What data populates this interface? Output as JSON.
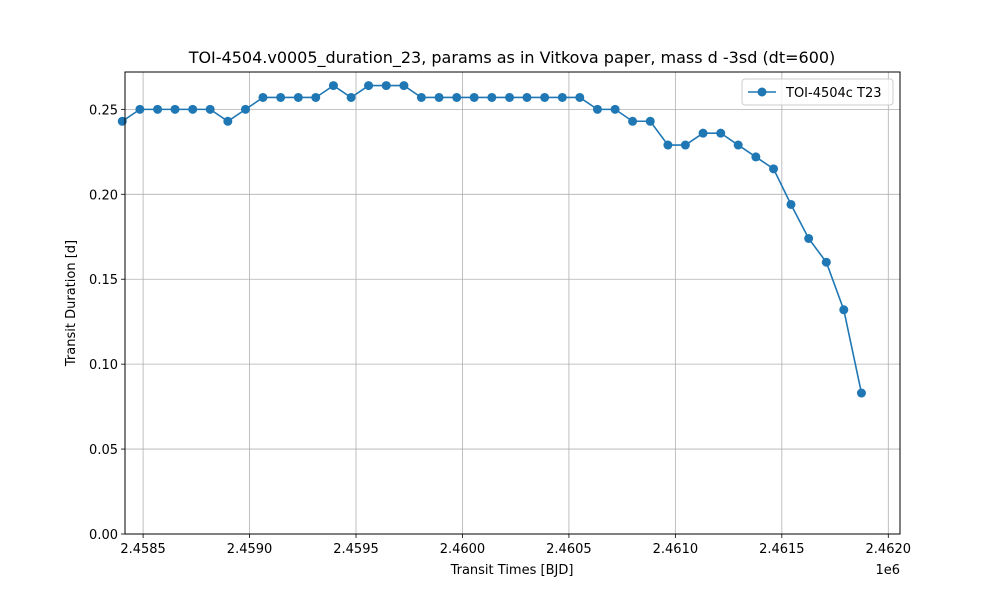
{
  "chart_data": {
    "type": "line",
    "title": "TOI-4504.v0005_duration_23, params as in Vitkova paper, mass d -3sd (dt=600)",
    "xlabel": "Transit Times [BJD]",
    "ylabel": "Transit Duration [d]",
    "x_offset_label": "1e6",
    "xlim": [
      2458415,
      2462055
    ],
    "ylim": [
      0.0,
      0.272
    ],
    "x_ticks": [
      2458500,
      2459000,
      2459500,
      2460000,
      2460500,
      2461000,
      2461500,
      2462000
    ],
    "x_tick_labels": [
      "2.4585",
      "2.4590",
      "2.4595",
      "2.4600",
      "2.4605",
      "2.4610",
      "2.4615",
      "2.4620"
    ],
    "y_ticks": [
      0.0,
      0.05,
      0.1,
      0.15,
      0.2,
      0.25
    ],
    "y_tick_labels": [
      "0.00",
      "0.05",
      "0.10",
      "0.15",
      "0.20",
      "0.25"
    ],
    "grid": true,
    "legend_position": "top-right",
    "colors": {
      "series": "#1f77b4",
      "grid": "#b0b0b0",
      "axes": "#000000"
    },
    "series": [
      {
        "name": "TOI-4504c T23",
        "marker": "circle",
        "x": [
          2458402,
          2458485,
          2458568,
          2458650,
          2458733,
          2458815,
          2458898,
          2458981,
          2459063,
          2459146,
          2459229,
          2459311,
          2459394,
          2459477,
          2459559,
          2459642,
          2459725,
          2459807,
          2459890,
          2459973,
          2460055,
          2460138,
          2460221,
          2460303,
          2460386,
          2460469,
          2460551,
          2460634,
          2460717,
          2460799,
          2460882,
          2460965,
          2461047,
          2461130,
          2461213,
          2461295,
          2461378,
          2461461,
          2461543,
          2461626,
          2461709,
          2461791,
          2461874
        ],
        "y": [
          0.243,
          0.25,
          0.25,
          0.25,
          0.25,
          0.25,
          0.243,
          0.25,
          0.257,
          0.257,
          0.257,
          0.257,
          0.264,
          0.257,
          0.264,
          0.264,
          0.264,
          0.257,
          0.257,
          0.257,
          0.257,
          0.257,
          0.257,
          0.257,
          0.257,
          0.257,
          0.257,
          0.25,
          0.25,
          0.243,
          0.243,
          0.229,
          0.229,
          0.236,
          0.236,
          0.229,
          0.222,
          0.215,
          0.194,
          0.174,
          0.16,
          0.132,
          0.083
        ]
      }
    ]
  }
}
